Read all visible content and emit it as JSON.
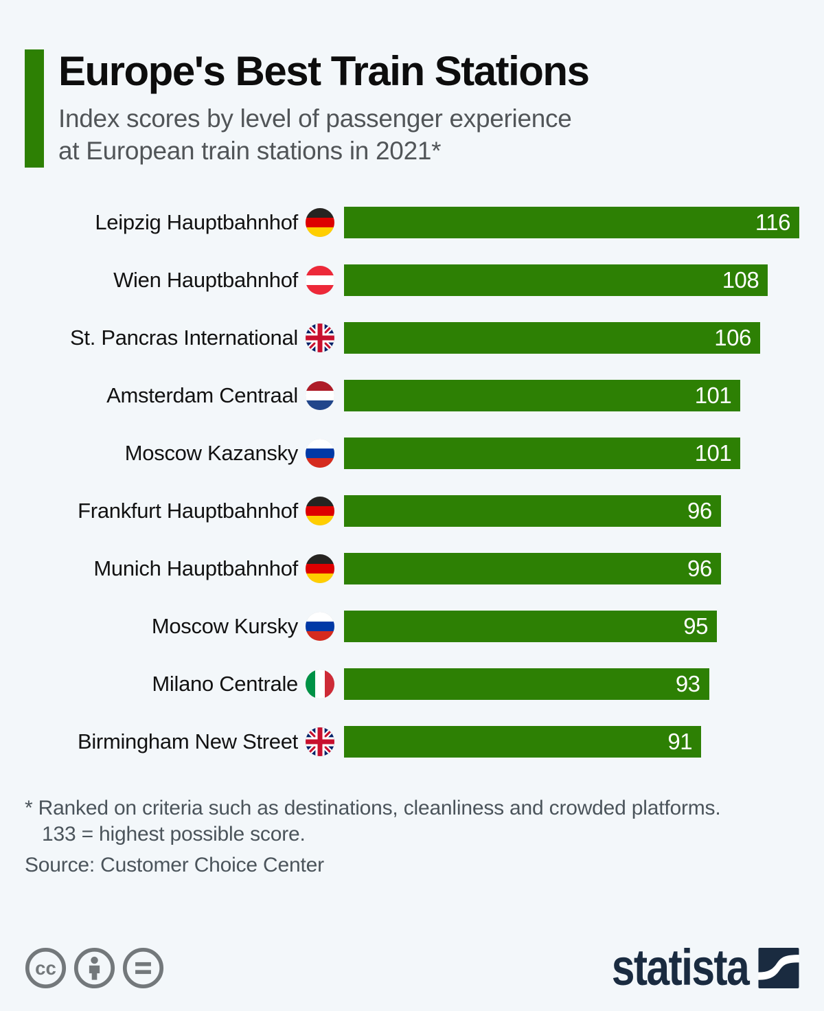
{
  "page": {
    "background_color": "#f3f7fa"
  },
  "header": {
    "title": "Europe's Best Train Stations",
    "subtitle_line1": "Index scores by level of passenger experience",
    "subtitle_line2": "at European train stations in 2021*",
    "accent_color": "#2d8004"
  },
  "chart_data": {
    "type": "bar",
    "orientation": "horizontal",
    "title": "Europe's Best Train Stations",
    "xlabel": "",
    "ylabel": "",
    "xlim": [
      0,
      116
    ],
    "grid": false,
    "bar_color": "#2d8004",
    "value_label_color": "#ffffff",
    "max_value": 116,
    "items": [
      {
        "station": "Leipzig Hauptbahnhof",
        "country": "germany",
        "flag_icon": "flag-germany-icon",
        "value": 116
      },
      {
        "station": "Wien Hauptbahnhof",
        "country": "austria",
        "flag_icon": "flag-austria-icon",
        "value": 108
      },
      {
        "station": "St. Pancras International",
        "country": "uk",
        "flag_icon": "flag-uk-icon",
        "value": 106
      },
      {
        "station": "Amsterdam Centraal",
        "country": "netherlands",
        "flag_icon": "flag-netherlands-icon",
        "value": 101
      },
      {
        "station": "Moscow Kazansky",
        "country": "russia",
        "flag_icon": "flag-russia-icon",
        "value": 101
      },
      {
        "station": "Frankfurt Hauptbahnhof",
        "country": "germany",
        "flag_icon": "flag-germany-icon",
        "value": 96
      },
      {
        "station": "Munich Hauptbahnhof",
        "country": "germany",
        "flag_icon": "flag-germany-icon",
        "value": 96
      },
      {
        "station": "Moscow Kursky",
        "country": "russia",
        "flag_icon": "flag-russia-icon",
        "value": 95
      },
      {
        "station": "Milano Centrale",
        "country": "italy",
        "flag_icon": "flag-italy-icon",
        "value": 93
      },
      {
        "station": "Birmingham New Street",
        "country": "uk",
        "flag_icon": "flag-uk-icon",
        "value": 91
      }
    ]
  },
  "footnote": {
    "line1": "* Ranked on criteria such as destinations, cleanliness and crowded platforms.",
    "line2": "133 = highest possible score.",
    "source": "Source: Customer Choice Center"
  },
  "footer": {
    "license_icons": [
      "cc-icon",
      "person-icon",
      "equals-icon"
    ],
    "icon_color": "#73787b",
    "brand": "statista",
    "brand_color": "#1a2b40"
  }
}
